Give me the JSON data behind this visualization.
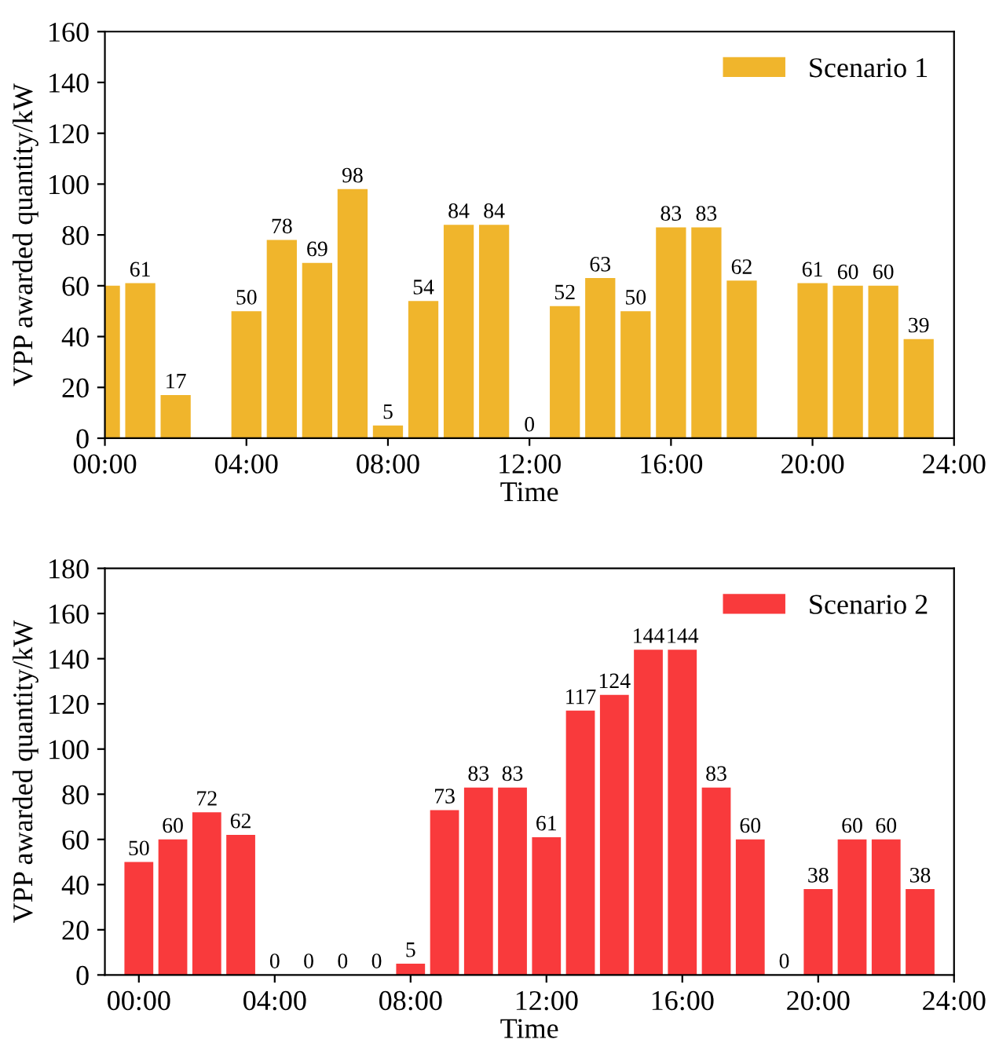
{
  "chart_data": [
    {
      "type": "bar",
      "xlabel": "Time",
      "ylabel": "VPP awarded quantity/kW",
      "x": [
        0,
        1,
        2,
        3,
        4,
        5,
        6,
        7,
        8,
        9,
        10,
        11,
        12,
        13,
        14,
        15,
        16,
        17,
        18,
        19,
        20,
        21,
        22,
        23
      ],
      "series": [
        {
          "name": "Scenario 1",
          "color": "#f0b52c",
          "values": [
            60,
            61,
            17,
            null,
            50,
            78,
            69,
            98,
            5,
            54,
            84,
            84,
            0,
            52,
            63,
            50,
            83,
            83,
            62,
            null,
            61,
            60,
            60,
            39
          ],
          "value_labels": [
            null,
            "61",
            "17",
            null,
            "50",
            "78",
            "69",
            "98",
            "5",
            "54",
            "84",
            "84",
            "0",
            "52",
            "63",
            "50",
            "83",
            "83",
            "62",
            null,
            "61",
            "60",
            "60",
            "39"
          ]
        }
      ],
      "xlim": [
        0,
        24
      ],
      "xticks": [
        {
          "value": 0,
          "label": "00:00"
        },
        {
          "value": 4,
          "label": "04:00"
        },
        {
          "value": 8,
          "label": "08:00"
        },
        {
          "value": 12,
          "label": "12:00"
        },
        {
          "value": 16,
          "label": "16:00"
        },
        {
          "value": 20,
          "label": "20:00"
        },
        {
          "value": 24,
          "label": "24:00"
        }
      ],
      "ylim": [
        0,
        160
      ],
      "yticks": [
        0,
        20,
        40,
        60,
        80,
        100,
        120,
        140,
        160
      ],
      "legend": "top right",
      "grid": false
    },
    {
      "type": "bar",
      "xlabel": "Time",
      "ylabel": "VPP awarded quantity/kW",
      "x": [
        0,
        1,
        2,
        3,
        4,
        5,
        6,
        7,
        8,
        9,
        10,
        11,
        12,
        13,
        14,
        15,
        16,
        17,
        18,
        19,
        20,
        21,
        22,
        23
      ],
      "series": [
        {
          "name": "Scenario 2",
          "color": "#f93a3c",
          "values": [
            50,
            60,
            72,
            62,
            0,
            0,
            0,
            0,
            5,
            73,
            83,
            83,
            61,
            117,
            124,
            144,
            144,
            83,
            60,
            0,
            38,
            60,
            60,
            38
          ]
        }
      ],
      "data_labels": true,
      "xlim": [
        -1,
        24
      ],
      "xticks": [
        {
          "value": 0,
          "label": "00:00"
        },
        {
          "value": 4,
          "label": "04:00"
        },
        {
          "value": 8,
          "label": "08:00"
        },
        {
          "value": 12,
          "label": "12:00"
        },
        {
          "value": 16,
          "label": "16:00"
        },
        {
          "value": 20,
          "label": "20:00"
        },
        {
          "value": 24,
          "label": "24:00"
        }
      ],
      "ylim": [
        0,
        180
      ],
      "yticks": [
        0,
        20,
        40,
        60,
        80,
        100,
        120,
        140,
        160,
        180
      ],
      "legend": "top right",
      "grid": false
    }
  ]
}
